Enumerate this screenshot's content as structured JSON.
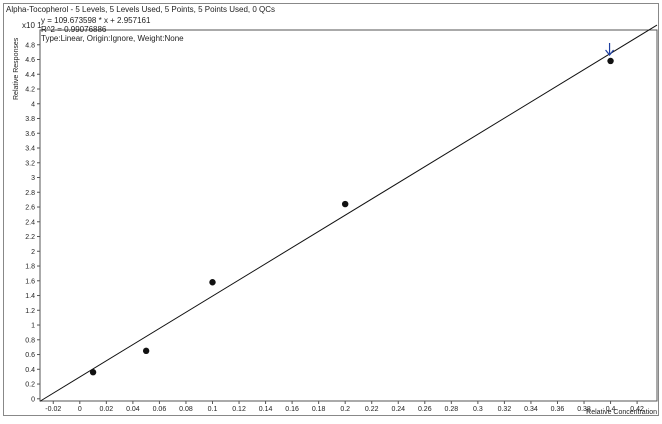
{
  "chart_data": {
    "type": "scatter",
    "title": "Alpha-Tocopherol - 5 Levels, 5 Levels Used, 5 Points, 5 Points Used, 0 QCs",
    "equation": "y = 109.673598 * x  + 2.957161",
    "r_squared": "R^2 = 0.99076886",
    "fit_info": "Type:Linear, Origin:Ignore, Weight:None",
    "xlabel": "Relative Concentration",
    "ylabel": "Relative Responses",
    "y_multiplier": "x10 1",
    "xlim": [
      -0.03,
      0.435
    ],
    "ylim": [
      -0.03,
      5.0
    ],
    "x_ticks": [
      "-0.02",
      "0",
      "0.02",
      "0.04",
      "0.06",
      "0.08",
      "0.1",
      "0.12",
      "0.14",
      "0.16",
      "0.18",
      "0.2",
      "0.22",
      "0.24",
      "0.26",
      "0.28",
      "0.3",
      "0.32",
      "0.34",
      "0.36",
      "0.38",
      "0.4",
      "0.42"
    ],
    "y_ticks": [
      "0",
      "0.2",
      "0.4",
      "0.6",
      "0.8",
      "1",
      "1.2",
      "1.4",
      "1.6",
      "1.8",
      "2",
      "2.2",
      "2.4",
      "2.6",
      "2.8",
      "3",
      "3.2",
      "3.4",
      "3.6",
      "3.8",
      "4",
      "4.2",
      "4.4",
      "4.6",
      "4.8"
    ],
    "points": [
      {
        "x": 0.01,
        "y": 0.36
      },
      {
        "x": 0.05,
        "y": 0.65
      },
      {
        "x": 0.1,
        "y": 1.58
      },
      {
        "x": 0.2,
        "y": 2.64
      },
      {
        "x": 0.4,
        "y": 4.58
      }
    ],
    "fit_line": {
      "slope": 10.9673598,
      "intercept": 0.2957161
    },
    "highlight_point_index": 4,
    "grid": false,
    "colors": {
      "points": "#111111",
      "line": "#111111",
      "marker": "#1f3fa0",
      "frame": "#555555"
    }
  }
}
